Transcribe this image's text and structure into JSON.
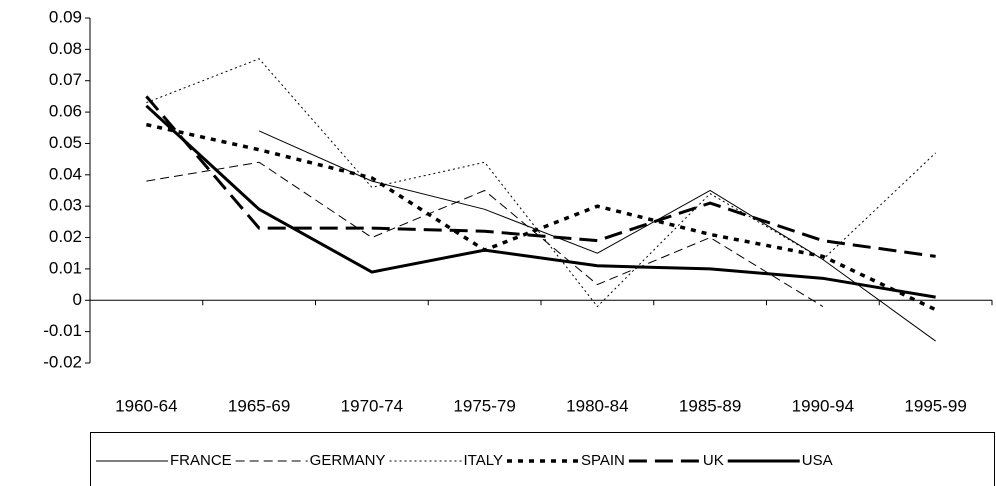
{
  "chart_data": {
    "type": "line",
    "categories": [
      "1960-64",
      "1965-69",
      "1970-74",
      "1975-79",
      "1980-84",
      "1985-89",
      "1990-94",
      "1995-99"
    ],
    "series": [
      {
        "name": "FRANCE",
        "color": "#000000",
        "style": "thin-solid",
        "values": [
          null,
          0.054,
          0.038,
          0.029,
          0.015,
          0.035,
          0.013,
          -0.013
        ]
      },
      {
        "name": "GERMANY",
        "color": "#000000",
        "style": "thin-dashed",
        "values": [
          0.038,
          0.044,
          0.02,
          0.035,
          0.005,
          0.02,
          -0.002,
          null
        ]
      },
      {
        "name": "ITALY",
        "color": "#000000",
        "style": "thin-dotted",
        "values": [
          0.063,
          0.077,
          0.036,
          0.044,
          -0.002,
          0.034,
          0.013,
          0.047
        ]
      },
      {
        "name": "SPAIN",
        "color": "#000000",
        "style": "thick-dotted",
        "values": [
          0.056,
          0.048,
          0.039,
          0.016,
          0.03,
          0.021,
          0.014,
          -0.003
        ]
      },
      {
        "name": "UK",
        "color": "#000000",
        "style": "thick-dashed",
        "values": [
          0.065,
          0.023,
          0.023,
          0.022,
          0.019,
          0.031,
          0.019,
          0.014
        ]
      },
      {
        "name": "USA",
        "color": "#000000",
        "style": "thick-solid",
        "values": [
          0.062,
          0.029,
          0.009,
          0.016,
          0.011,
          0.01,
          0.007,
          0.001
        ]
      }
    ],
    "ylim": [
      -0.02,
      0.09
    ],
    "yticks": [
      -0.02,
      -0.01,
      0,
      0.01,
      0.02,
      0.03,
      0.04,
      0.05,
      0.06,
      0.07,
      0.08,
      0.09
    ],
    "grid": false,
    "legend": "bottom"
  }
}
